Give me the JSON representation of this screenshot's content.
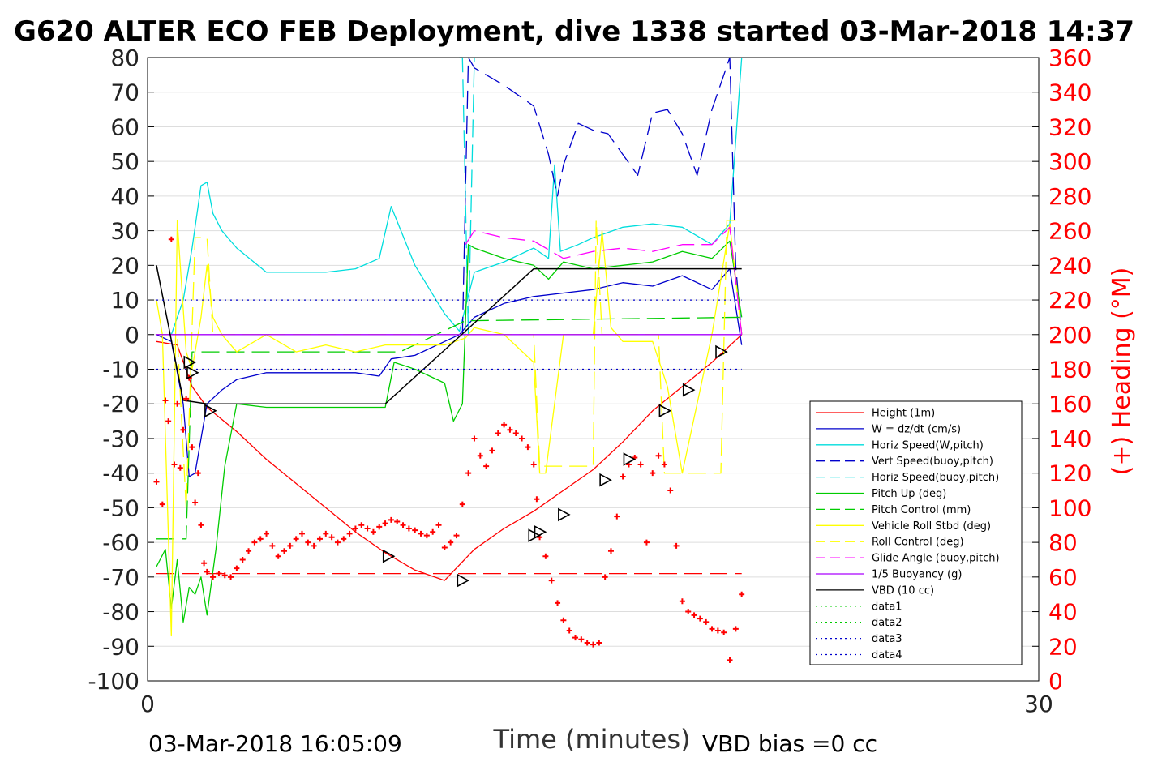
{
  "chart_data": {
    "type": "line",
    "title": "G620 ALTER ECO FEB Deployment, dive 1338 started 03-Mar-2018 14:37",
    "xlabel": "Time (minutes)",
    "ylabel_right": "(+) Heading (°M)",
    "footer_left": "03-Mar-2018 16:05:09",
    "footer_right": "VBD bias =0 cc",
    "xlim": [
      0,
      30
    ],
    "ylim_left": [
      -100,
      80
    ],
    "ylim_right": [
      0,
      360
    ],
    "x_ticks": [
      0,
      30
    ],
    "y_ticks_left": [
      80,
      70,
      60,
      50,
      40,
      30,
      20,
      10,
      0,
      -10,
      -20,
      -30,
      -40,
      -50,
      -60,
      -70,
      -80,
      -90,
      -100
    ],
    "y_ticks_right": [
      360,
      340,
      320,
      300,
      280,
      260,
      240,
      220,
      200,
      180,
      160,
      140,
      120,
      100,
      80,
      60,
      40,
      20,
      0
    ],
    "grid": true,
    "legend_position": "lower-right",
    "legend": [
      {
        "label": "Height (1m)",
        "color": "#ff0000",
        "dash": "solid"
      },
      {
        "label": "W = dz/dt (cm/s)",
        "color": "#0000cc",
        "dash": "solid"
      },
      {
        "label": "Horiz Speed(W,pitch)",
        "color": "#00dddd",
        "dash": "solid"
      },
      {
        "label": "Vert Speed(buoy,pitch)",
        "color": "#0000cc",
        "dash": "dashed"
      },
      {
        "label": "Horiz Speed(buoy,pitch)",
        "color": "#00dddd",
        "dash": "dashed"
      },
      {
        "label": "Pitch Up (deg)",
        "color": "#00cc00",
        "dash": "solid"
      },
      {
        "label": "Pitch Control (mm)",
        "color": "#00cc00",
        "dash": "dashed"
      },
      {
        "label": "Vehicle Roll Stbd (deg)",
        "color": "#ffff00",
        "dash": "solid"
      },
      {
        "label": "Roll Control (deg)",
        "color": "#ffff00",
        "dash": "dashed"
      },
      {
        "label": "Glide Angle (buoy,pitch)",
        "color": "#ff00ff",
        "dash": "dashed"
      },
      {
        "label": "1/5 Buoyancy (g)",
        "color": "#aa00ff",
        "dash": "solid"
      },
      {
        "label": "VBD (10 cc)",
        "color": "#000000",
        "dash": "solid"
      },
      {
        "label": "data1",
        "color": "#00cc00",
        "dash": "dotted"
      },
      {
        "label": "data2",
        "color": "#00cc00",
        "dash": "dotted"
      },
      {
        "label": "data3",
        "color": "#0000cc",
        "dash": "dotted"
      },
      {
        "label": "data4",
        "color": "#0000cc",
        "dash": "dotted"
      }
    ],
    "series": [
      {
        "key": "height",
        "color": "#ff0000",
        "dash": "solid",
        "x": [
          0.3,
          1.0,
          1.5,
          2.0,
          3.0,
          4.0,
          5.0,
          6.0,
          7.0,
          8.0,
          9.0,
          10.0,
          11.0,
          12.0,
          13.0,
          14.0,
          15.0,
          16.0,
          17.0,
          18.0,
          19.0,
          20.0
        ],
        "y": [
          -2,
          -3,
          -15,
          -21,
          -28,
          -36,
          -43,
          -50,
          -57,
          -63,
          -68,
          -71,
          -62,
          -56,
          -51,
          -45,
          -39,
          -31,
          -22,
          -15,
          -8,
          0
        ]
      },
      {
        "key": "w",
        "color": "#0000cc",
        "dash": "solid",
        "x": [
          0.3,
          0.8,
          1.2,
          1.4,
          1.6,
          2.0,
          2.5,
          3.0,
          4.0,
          5.0,
          6.0,
          7.0,
          7.8,
          8.2,
          9.0,
          10.0,
          10.5,
          11.0,
          12.0,
          13.0,
          14.0,
          15.0,
          16.0,
          17.0,
          18.0,
          19.0,
          19.6,
          20.0
        ],
        "y": [
          0,
          -2,
          -20,
          -41,
          -40,
          -20,
          -16,
          -13,
          -11,
          -11,
          -11,
          -11,
          -12,
          -7,
          -6,
          -2,
          0,
          5,
          9,
          11,
          12,
          13,
          15,
          14,
          17,
          13,
          19,
          -3
        ]
      },
      {
        "key": "horiz_w",
        "color": "#00dddd",
        "dash": "solid",
        "x": [
          0.3,
          0.8,
          1.2,
          1.5,
          1.8,
          2.0,
          2.2,
          2.5,
          3.0,
          4.0,
          5.0,
          6.0,
          7.0,
          7.8,
          8.2,
          9.0,
          9.5,
          10.0,
          10.5,
          11.0,
          12.0,
          13.0,
          13.5,
          13.7,
          13.9,
          14.5,
          15.0,
          16.0,
          17.0,
          18.0,
          19.0,
          19.6,
          20.0
        ],
        "y": [
          0,
          0,
          10,
          25,
          43,
          44,
          35,
          30,
          25,
          18,
          18,
          18,
          19,
          22,
          37,
          20,
          13,
          6,
          1,
          18,
          21,
          25,
          22,
          49,
          24,
          26,
          28,
          31,
          32,
          31,
          26,
          32,
          80
        ]
      },
      {
        "key": "vert_buoy",
        "color": "#0000cc",
        "dash": "dashed",
        "x": [
          10.6,
          10.8,
          11.0,
          12.0,
          13.0,
          13.5,
          13.8,
          14.0,
          14.5,
          15.0,
          15.5,
          16.0,
          16.5,
          17.0,
          17.5,
          18.0,
          18.5,
          19.0,
          19.4,
          19.6,
          19.8,
          20.0
        ],
        "y": [
          0,
          80,
          77,
          72,
          66,
          52,
          40,
          49,
          61,
          59,
          58,
          52,
          46,
          64,
          65,
          58,
          46,
          65,
          75,
          80,
          20,
          0
        ]
      },
      {
        "key": "horiz_buoy",
        "color": "#00dddd",
        "dash": "dashed",
        "x": [
          10.5,
          10.6,
          10.8,
          11.0
        ],
        "y": [
          80,
          80,
          0,
          80
        ]
      },
      {
        "key": "pitch",
        "color": "#00cc00",
        "dash": "solid",
        "x": [
          0.3,
          0.6,
          0.8,
          1.0,
          1.2,
          1.4,
          1.6,
          1.8,
          2.0,
          2.3,
          2.6,
          3.0,
          4.0,
          5.0,
          6.0,
          7.0,
          8.0,
          8.3,
          9.0,
          10.0,
          10.3,
          10.6,
          10.8,
          11.0,
          12.0,
          13.0,
          13.5,
          14.0,
          15.0,
          16.0,
          17.0,
          18.0,
          19.0,
          19.6,
          20.0
        ],
        "y": [
          -67,
          -62,
          -79,
          -65,
          -83,
          -73,
          -75,
          -70,
          -81,
          -62,
          -38,
          -20,
          -21,
          -21,
          -21,
          -21,
          -21,
          -8,
          -10,
          -14,
          -25,
          -20,
          26,
          25,
          22,
          20,
          16,
          21,
          19,
          20,
          21,
          24,
          22,
          27,
          5
        ]
      },
      {
        "key": "pitch_control",
        "color": "#00cc00",
        "dash": "dashed",
        "x": [
          0.3,
          1.3,
          1.5,
          8.5,
          10.7,
          20.0
        ],
        "y": [
          -59,
          -59,
          -5,
          -5,
          4,
          5
        ]
      },
      {
        "key": "roll",
        "color": "#ffff00",
        "dash": "solid",
        "x": [
          0.3,
          0.5,
          0.8,
          1.0,
          1.1,
          1.3,
          1.5,
          1.8,
          2.0,
          2.2,
          2.5,
          3.0,
          4.0,
          5.0,
          6.0,
          7.0,
          8.0,
          9.0,
          10.0,
          10.7,
          11.0,
          12.0,
          13.0,
          13.2,
          13.4,
          14.0,
          15.0,
          15.3,
          15.6,
          16.0,
          17.0,
          17.5,
          18.0,
          18.5,
          19.0,
          19.6,
          20.0
        ],
        "y": [
          10,
          0,
          -87,
          33,
          20,
          -5,
          -10,
          5,
          20,
          5,
          0,
          -5,
          0,
          -5,
          -3,
          -5,
          -3,
          -3,
          -3,
          -1,
          2,
          0,
          -8,
          -40,
          -40,
          0,
          0,
          30,
          2,
          -2,
          -2,
          -15,
          -40,
          -20,
          0,
          32,
          0
        ]
      },
      {
        "key": "roll_control",
        "color": "#ffff00",
        "dash": "dashed",
        "x": [
          0.3,
          1.0,
          1.3,
          1.6,
          2.0,
          2.2,
          13.0,
          13.2,
          15.0,
          15.1,
          15.3,
          17.2,
          17.4,
          19.3,
          19.5,
          20.0
        ],
        "y": [
          0,
          0,
          -50,
          28,
          28,
          0,
          0,
          -38,
          -38,
          33,
          0,
          0,
          -40,
          -40,
          33,
          33
        ]
      },
      {
        "key": "glide_angle",
        "color": "#ff00ff",
        "dash": "dashed",
        "x": [
          10.7,
          11.0,
          12.0,
          13.0,
          14.0,
          15.0,
          16.0,
          17.0,
          18.0,
          19.0,
          19.6,
          20.0
        ],
        "y": [
          26,
          30,
          28,
          27,
          22,
          24,
          25,
          24,
          26,
          26,
          31,
          0
        ]
      },
      {
        "key": "buoyancy",
        "color": "#aa00ff",
        "dash": "solid",
        "x": [
          0.3,
          10.6,
          10.7,
          20.0
        ],
        "y": [
          0,
          0,
          0,
          0
        ]
      },
      {
        "key": "vbd",
        "color": "#000000",
        "dash": "solid",
        "x": [
          0.3,
          1.2,
          2.0,
          8.0,
          10.7,
          13.0,
          20.0
        ],
        "y": [
          20,
          -19,
          -20,
          -20,
          1,
          19,
          19
        ]
      },
      {
        "key": "data3",
        "color": "#0000cc",
        "dash": "dotted",
        "x": [
          0.3,
          20.0
        ],
        "y": [
          10,
          10
        ]
      },
      {
        "key": "data4",
        "color": "#0000cc",
        "dash": "dotted",
        "x": [
          0.3,
          20.0
        ],
        "y": [
          -10,
          -10
        ]
      }
    ],
    "heading_reference": {
      "color": "#ff0000",
      "dash": "dashed",
      "x": [
        0.3,
        20.0
      ],
      "y_right": [
        62,
        62
      ]
    },
    "heading": {
      "color": "#ff0000",
      "axis": "right",
      "x": [
        0.3,
        0.5,
        0.6,
        0.7,
        0.8,
        0.9,
        1.0,
        1.1,
        1.2,
        1.3,
        1.4,
        1.5,
        1.6,
        1.7,
        1.8,
        1.9,
        2.0,
        2.2,
        2.4,
        2.6,
        2.8,
        3.0,
        3.2,
        3.4,
        3.6,
        3.8,
        4.0,
        4.2,
        4.4,
        4.6,
        4.8,
        5.0,
        5.2,
        5.4,
        5.6,
        5.8,
        6.0,
        6.2,
        6.4,
        6.6,
        6.8,
        7.0,
        7.2,
        7.4,
        7.6,
        7.8,
        8.0,
        8.2,
        8.4,
        8.6,
        8.8,
        9.0,
        9.2,
        9.4,
        9.6,
        9.8,
        10.0,
        10.2,
        10.4,
        10.6,
        10.8,
        11.0,
        11.2,
        11.4,
        11.6,
        11.8,
        12.0,
        12.2,
        12.4,
        12.6,
        12.8,
        13.0,
        13.1,
        13.2,
        13.4,
        13.6,
        13.8,
        14.0,
        14.2,
        14.4,
        14.6,
        14.8,
        15.0,
        15.2,
        15.4,
        15.6,
        15.8,
        16.0,
        16.2,
        16.4,
        16.6,
        16.8,
        17.0,
        17.2,
        17.4,
        17.6,
        17.8,
        18.0,
        18.2,
        18.4,
        18.6,
        18.8,
        19.0,
        19.2,
        19.4,
        19.6,
        19.8,
        20.0
      ],
      "y": [
        115,
        102,
        162,
        150,
        255,
        125,
        160,
        123,
        145,
        163,
        175,
        135,
        103,
        120,
        90,
        68,
        63,
        60,
        62,
        61,
        60,
        65,
        70,
        75,
        80,
        82,
        85,
        78,
        72,
        75,
        78,
        82,
        85,
        80,
        78,
        82,
        85,
        83,
        80,
        82,
        85,
        88,
        90,
        88,
        86,
        89,
        91,
        93,
        92,
        90,
        88,
        87,
        85,
        84,
        86,
        90,
        77,
        80,
        84,
        102,
        120,
        140,
        130,
        124,
        133,
        143,
        148,
        145,
        143,
        140,
        135,
        125,
        105,
        83,
        72,
        58,
        45,
        35,
        29,
        25,
        24,
        22,
        21,
        22,
        60,
        75,
        95,
        118,
        125,
        129,
        125,
        80,
        120,
        130,
        125,
        110,
        78,
        46,
        40,
        38,
        36,
        34,
        30,
        29,
        28,
        12,
        30,
        50
      ]
    },
    "markers": {
      "marker": "triangle",
      "x": [
        1.4,
        1.5,
        2.1,
        8.1,
        10.6,
        13.0,
        13.2,
        14.0,
        15.4,
        16.2,
        17.4,
        18.2,
        19.3
      ],
      "y": [
        -8,
        -11,
        -22,
        -64,
        -71,
        -58,
        -57,
        -52,
        -42,
        -36,
        -22,
        -16,
        -5
      ]
    }
  }
}
